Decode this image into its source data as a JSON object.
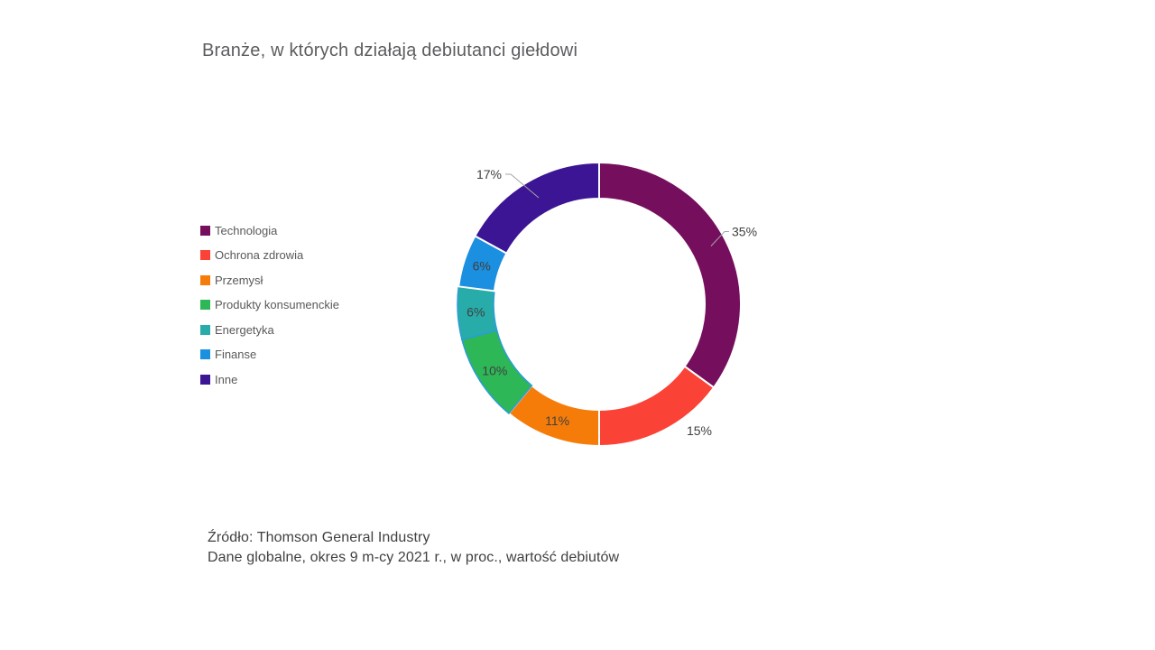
{
  "title": "Branże, w których działają debiutanci giełdowi",
  "footer": {
    "line1": "Źródło: Thomson General Industry",
    "line2": "Dane globalne, okres 9 m-cy 2021 r., w proc., wartość debiutów"
  },
  "chart_data": {
    "type": "pie",
    "subtype": "donut",
    "title": "Branże, w których działają debiutanci giełdowi",
    "unit": "percent",
    "total": 100,
    "direction": "clockwise",
    "start_angle_deg": 0,
    "donut_hole_ratio": 0.75,
    "legend_position": "left",
    "label_color": "#404041",
    "leader_line_color": "#A6A6A6",
    "series": [
      {
        "name": "Technologia",
        "value": 35,
        "label": "35%",
        "color": "#750E5C",
        "border_color": "#FFFFFF",
        "label_placement": "outside-leader"
      },
      {
        "name": "Ochrona zdrowia",
        "value": 15,
        "label": "15%",
        "color": "#FB4236",
        "border_color": "#FFFFFF",
        "label_placement": "outside"
      },
      {
        "name": "Przemysł",
        "value": 11,
        "label": "11%",
        "color": "#F67C0A",
        "border_color": "#FFFFFF",
        "label_placement": "inside"
      },
      {
        "name": "Produkty konsumenckie",
        "value": 10,
        "label": "10%",
        "color": "#2DB757",
        "border_color": "#2B9CD9",
        "label_placement": "inside"
      },
      {
        "name": "Energetyka",
        "value": 6,
        "label": "6%",
        "color": "#27ACAA",
        "border_color": "#2B9CD9",
        "label_placement": "inside"
      },
      {
        "name": "Finanse",
        "value": 6,
        "label": "6%",
        "color": "#1B8FE0",
        "border_color": "#FFFFFF",
        "label_placement": "inside"
      },
      {
        "name": "Inne",
        "value": 17,
        "label": "17%",
        "color": "#3B1594",
        "border_color": "#FFFFFF",
        "label_placement": "outside-leader"
      }
    ]
  }
}
